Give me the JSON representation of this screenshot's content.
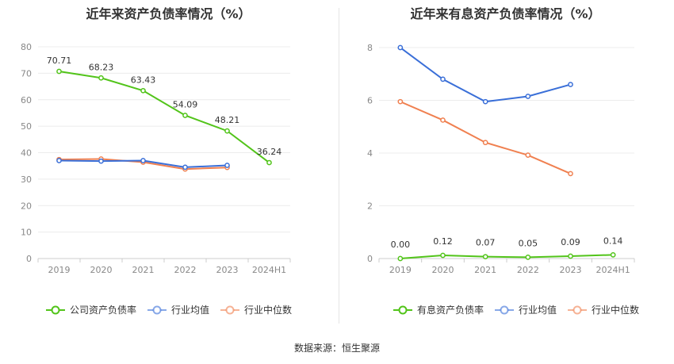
{
  "chart_data": [
    {
      "type": "line",
      "title": "近年来资产负债率情况（%）",
      "categories": [
        "2019",
        "2020",
        "2021",
        "2022",
        "2023",
        "2024H1"
      ],
      "ylim": [
        0,
        80
      ],
      "yticks": [
        0,
        10,
        20,
        30,
        40,
        50,
        60,
        70,
        80
      ],
      "grid": true,
      "legend_position": "bottom",
      "series": [
        {
          "name": "公司资产负债率",
          "color": "#52c41a",
          "values": [
            70.71,
            68.23,
            63.43,
            54.09,
            48.21,
            36.24
          ],
          "labels": [
            "70.71",
            "68.23",
            "63.43",
            "54.09",
            "48.21",
            "36.24"
          ]
        },
        {
          "name": "行业均值",
          "color": "#3a6fd8",
          "values": [
            37.0,
            36.8,
            37.0,
            34.5,
            35.2,
            null
          ]
        },
        {
          "name": "行业中位数",
          "color": "#f08050",
          "values": [
            37.4,
            37.6,
            36.4,
            33.8,
            34.4,
            null
          ]
        }
      ]
    },
    {
      "type": "line",
      "title": "近年来有息资产负债率情况（%）",
      "categories": [
        "2019",
        "2020",
        "2021",
        "2022",
        "2023",
        "2024H1"
      ],
      "ylim": [
        0,
        8
      ],
      "yticks": [
        0,
        2,
        4,
        6,
        8
      ],
      "grid": true,
      "legend_position": "bottom",
      "series": [
        {
          "name": "有息资产负债率",
          "color": "#52c41a",
          "values": [
            0.0,
            0.12,
            0.07,
            0.05,
            0.09,
            0.14
          ],
          "labels": [
            "0.00",
            "0.12",
            "0.07",
            "0.05",
            "0.09",
            "0.14"
          ]
        },
        {
          "name": "行业均值",
          "color": "#3a6fd8",
          "values": [
            8.0,
            6.8,
            5.95,
            6.15,
            6.6,
            null
          ]
        },
        {
          "name": "行业中位数",
          "color": "#f08050",
          "values": [
            5.95,
            5.25,
            4.4,
            3.92,
            3.22,
            null
          ]
        }
      ]
    }
  ],
  "footer": {
    "source_text": "数据来源：恒生聚源"
  }
}
